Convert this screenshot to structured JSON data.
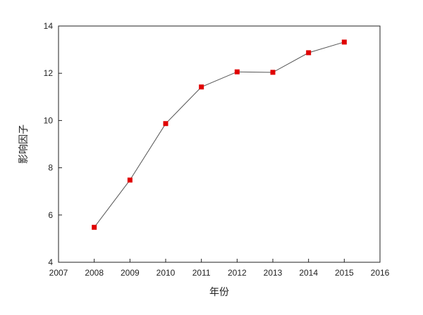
{
  "chart_data": {
    "type": "line",
    "title": "",
    "xlabel": "年份",
    "ylabel": "影响因子",
    "xlim": [
      2007,
      2016
    ],
    "ylim": [
      4,
      14
    ],
    "x_ticks": [
      2007,
      2008,
      2009,
      2010,
      2011,
      2012,
      2013,
      2014,
      2015,
      2016
    ],
    "y_ticks": [
      4,
      6,
      8,
      10,
      12,
      14
    ],
    "grid": false,
    "legend": false,
    "series": [
      {
        "x": [
          2008,
          2009,
          2010,
          2011,
          2012,
          2013,
          2014,
          2015
        ],
        "y": [
          5.48,
          7.48,
          9.87,
          11.42,
          12.06,
          12.04,
          12.87,
          13.32
        ],
        "line_color": "#555555",
        "marker_color": "#e00000",
        "marker": "square"
      }
    ]
  }
}
